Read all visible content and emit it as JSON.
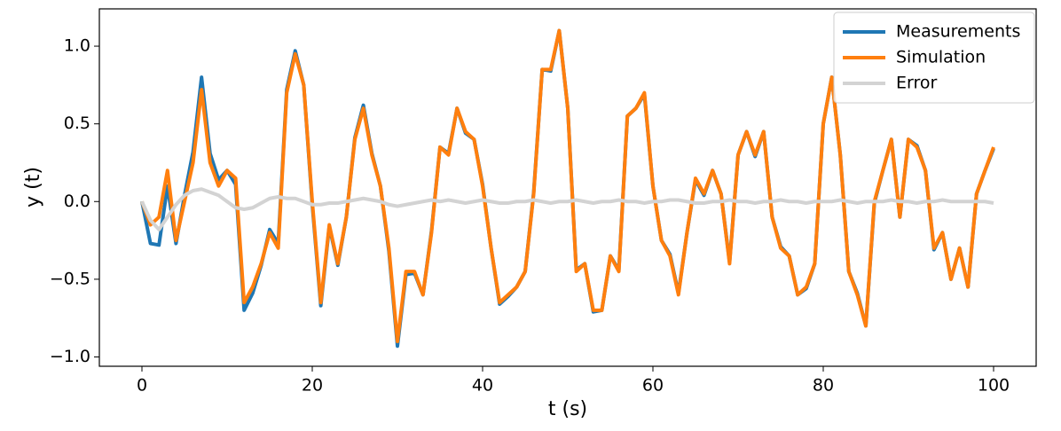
{
  "chart_data": {
    "type": "line",
    "xlabel": "t (s)",
    "ylabel": "y (t)",
    "x": [
      0,
      1,
      2,
      3,
      4,
      5,
      6,
      7,
      8,
      9,
      10,
      11,
      12,
      13,
      14,
      15,
      16,
      17,
      18,
      19,
      20,
      21,
      22,
      23,
      24,
      25,
      26,
      27,
      28,
      29,
      30,
      31,
      32,
      33,
      34,
      35,
      36,
      37,
      38,
      39,
      40,
      41,
      42,
      43,
      44,
      45,
      46,
      47,
      48,
      49,
      50,
      51,
      52,
      53,
      54,
      55,
      56,
      57,
      58,
      59,
      60,
      61,
      62,
      63,
      64,
      65,
      66,
      67,
      68,
      69,
      70,
      71,
      72,
      73,
      74,
      75,
      76,
      77,
      78,
      79,
      80,
      81,
      82,
      83,
      84,
      85,
      86,
      87,
      88,
      89,
      90,
      91,
      92,
      93,
      94,
      95,
      96,
      97,
      98,
      99,
      100
    ],
    "series": [
      {
        "name": "Measurements",
        "color": "#1f77b4",
        "values": [
          0,
          -0.27,
          -0.28,
          0.1,
          -0.27,
          0.04,
          0.32,
          0.8,
          0.31,
          0.14,
          0.2,
          0.11,
          -0.7,
          -0.59,
          -0.41,
          -0.18,
          -0.27,
          0.72,
          0.97,
          0.75,
          -0.02,
          -0.67,
          -0.16,
          -0.41,
          -0.1,
          0.41,
          0.62,
          0.31,
          0.1,
          -0.32,
          -0.93,
          -0.47,
          -0.46,
          -0.6,
          -0.19,
          0.35,
          0.31,
          0.6,
          0.44,
          0.4,
          0.11,
          -0.3,
          -0.66,
          -0.61,
          -0.55,
          -0.45,
          0.06,
          0.85,
          0.84,
          1.1,
          0.6,
          -0.44,
          -0.4,
          -0.71,
          -0.7,
          -0.35,
          -0.44,
          0.55,
          0.6,
          0.69,
          0.1,
          -0.25,
          -0.34,
          -0.59,
          -0.2,
          0.14,
          0.04,
          0.2,
          0.05,
          -0.39,
          0.3,
          0.45,
          0.29,
          0.45,
          -0.1,
          -0.29,
          -0.35,
          -0.6,
          -0.56,
          -0.4,
          0.5,
          0.8,
          0.3,
          -0.45,
          -0.59,
          -0.8,
          -0.01,
          0.2,
          0.4,
          -0.1,
          0.4,
          0.36,
          0.2,
          -0.31,
          -0.2,
          -0.5,
          -0.3,
          -0.55,
          0.05,
          0.2,
          0.34
        ]
      },
      {
        "name": "Simulation",
        "color": "#ff7f0e",
        "values": [
          0,
          -0.15,
          -0.1,
          0.2,
          -0.25,
          0,
          0.25,
          0.72,
          0.25,
          0.1,
          0.2,
          0.15,
          -0.65,
          -0.55,
          -0.4,
          -0.2,
          -0.3,
          0.7,
          0.95,
          0.75,
          0,
          -0.65,
          -0.15,
          -0.4,
          -0.1,
          0.4,
          0.6,
          0.3,
          0.1,
          -0.3,
          -0.9,
          -0.45,
          -0.45,
          -0.6,
          -0.2,
          0.35,
          0.3,
          0.6,
          0.45,
          0.4,
          0.1,
          -0.3,
          -0.65,
          -0.6,
          -0.55,
          -0.45,
          0.05,
          0.85,
          0.85,
          1.1,
          0.6,
          -0.45,
          -0.4,
          -0.7,
          -0.7,
          -0.35,
          -0.45,
          0.55,
          0.6,
          0.7,
          0.1,
          -0.25,
          -0.35,
          -0.6,
          -0.2,
          0.15,
          0.05,
          0.2,
          0.05,
          -0.4,
          0.3,
          0.45,
          0.3,
          0.45,
          -0.1,
          -0.3,
          -0.35,
          -0.6,
          -0.55,
          -0.4,
          0.5,
          0.8,
          0.3,
          -0.45,
          -0.6,
          -0.8,
          0,
          0.2,
          0.4,
          -0.1,
          0.4,
          0.35,
          0.2,
          -0.3,
          -0.2,
          -0.5,
          -0.3,
          -0.55,
          0.05,
          0.2,
          0.35
        ]
      },
      {
        "name": "Error",
        "color": "#d3d3d3",
        "values": [
          0,
          -0.12,
          -0.18,
          -0.1,
          -0.02,
          0.04,
          0.07,
          0.08,
          0.06,
          0.04,
          0,
          -0.04,
          -0.05,
          -0.04,
          -0.01,
          0.02,
          0.03,
          0.02,
          0.02,
          0,
          -0.02,
          -0.02,
          -0.01,
          -0.01,
          0,
          0.01,
          0.02,
          0.01,
          0,
          -0.02,
          -0.03,
          -0.02,
          -0.01,
          0,
          0.01,
          0,
          0.01,
          0,
          -0.01,
          0,
          0.01,
          0,
          -0.01,
          -0.01,
          0,
          0,
          0.01,
          0,
          -0.01,
          0,
          0,
          0.01,
          0,
          -0.01,
          0,
          0,
          0.01,
          0,
          0,
          -0.01,
          0,
          0,
          0.01,
          0.01,
          0,
          -0.01,
          -0.01,
          0,
          0,
          0.01,
          0,
          0,
          -0.01,
          0,
          0,
          0.01,
          0,
          0,
          -0.01,
          0,
          0,
          0,
          0.01,
          0,
          -0.01,
          0,
          0,
          0,
          0.01,
          0,
          0,
          -0.01,
          0,
          0,
          0.01,
          0,
          0,
          0,
          0,
          0,
          -0.01
        ]
      }
    ],
    "xlim": [
      -5,
      105
    ],
    "xticks": [
      0,
      20,
      40,
      60,
      80,
      100
    ],
    "ylim": [
      -1.06,
      1.24
    ],
    "yticks": [
      {
        "value": -1,
        "label": "−1.0"
      },
      {
        "value": -0.5,
        "label": "−0.5"
      },
      {
        "value": 0,
        "label": "0.0"
      },
      {
        "value": 0.5,
        "label": "0.5"
      },
      {
        "value": 1,
        "label": "1.0"
      }
    ],
    "legend": "upper right"
  }
}
